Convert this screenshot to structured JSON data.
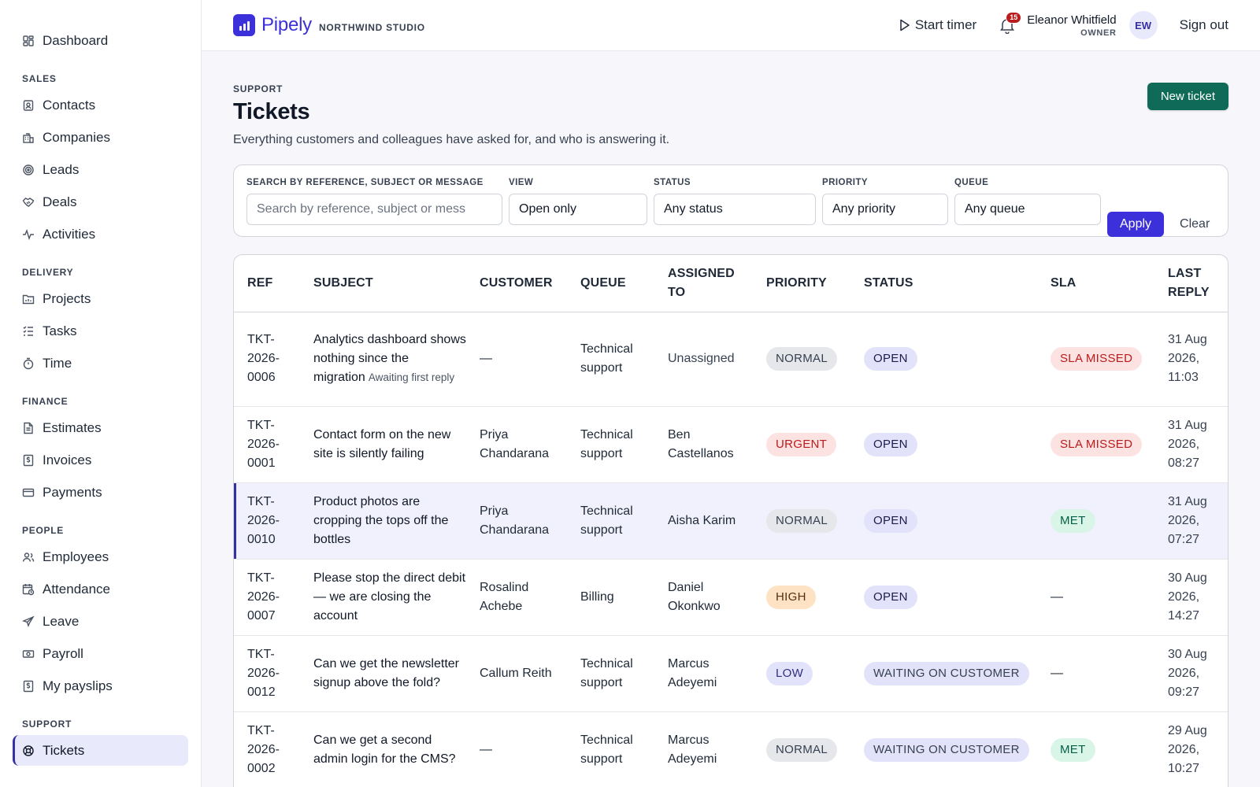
{
  "sidebar": {
    "top": [
      {
        "label": "Dashboard",
        "icon": "dashboard-icon"
      }
    ],
    "sections": [
      {
        "title": "SALES",
        "items": [
          {
            "label": "Contacts",
            "icon": "contacts-icon"
          },
          {
            "label": "Companies",
            "icon": "companies-icon"
          },
          {
            "label": "Leads",
            "icon": "target-icon"
          },
          {
            "label": "Deals",
            "icon": "handshake-icon"
          },
          {
            "label": "Activities",
            "icon": "activity-icon"
          }
        ]
      },
      {
        "title": "DELIVERY",
        "items": [
          {
            "label": "Projects",
            "icon": "folder-icon"
          },
          {
            "label": "Tasks",
            "icon": "checklist-icon"
          },
          {
            "label": "Time",
            "icon": "stopwatch-icon"
          }
        ]
      },
      {
        "title": "FINANCE",
        "items": [
          {
            "label": "Estimates",
            "icon": "document-icon"
          },
          {
            "label": "Invoices",
            "icon": "invoice-icon"
          },
          {
            "label": "Payments",
            "icon": "card-icon"
          }
        ]
      },
      {
        "title": "PEOPLE",
        "items": [
          {
            "label": "Employees",
            "icon": "people-icon"
          },
          {
            "label": "Attendance",
            "icon": "calendar-clock-icon"
          },
          {
            "label": "Leave",
            "icon": "plane-icon"
          },
          {
            "label": "Payroll",
            "icon": "money-icon"
          },
          {
            "label": "My payslips",
            "icon": "payslip-icon"
          }
        ]
      },
      {
        "title": "SUPPORT",
        "items": [
          {
            "label": "Tickets",
            "icon": "lifebuoy-icon",
            "active": true
          }
        ]
      }
    ]
  },
  "topbar": {
    "brand": "Pipely",
    "org": "NORTHWIND STUDIO",
    "start_timer": "Start timer",
    "notifications_count": "15",
    "user_name": "Eleanor Whitfield",
    "user_role": "OWNER",
    "avatar_initials": "EW",
    "sign_out": "Sign out"
  },
  "page": {
    "eyebrow": "SUPPORT",
    "title": "Tickets",
    "subtitle": "Everything customers and colleagues have asked for, and who is answering it.",
    "new_ticket": "New ticket"
  },
  "filters": {
    "search_label": "SEARCH BY REFERENCE, SUBJECT OR MESSAGE",
    "search_placeholder": "Search by reference, subject or mess",
    "view_label": "VIEW",
    "view_value": "Open only",
    "status_label": "STATUS",
    "status_value": "Any status",
    "priority_label": "PRIORITY",
    "priority_value": "Any priority",
    "queue_label": "QUEUE",
    "queue_value": "Any queue",
    "apply": "Apply",
    "clear": "Clear"
  },
  "table": {
    "headers": [
      "REF",
      "SUBJECT",
      "CUSTOMER",
      "QUEUE",
      "ASSIGNED TO",
      "PRIORITY",
      "STATUS",
      "SLA",
      "LAST REPLY"
    ],
    "rows": [
      {
        "ref": "TKT-2026-0006",
        "subject": "Analytics dashboard shows nothing since the migration",
        "note": "Awaiting first reply",
        "customer": "—",
        "queue": "Technical support",
        "assigned": "Unassigned",
        "priority": "NORMAL",
        "status": "OPEN",
        "sla": "SLA MISSED",
        "last_reply": "31 Aug 2026, 11:03"
      },
      {
        "ref": "TKT-2026-0001",
        "subject": "Contact form on the new site is silently failing",
        "note": "",
        "customer": "Priya Chandarana",
        "queue": "Technical support",
        "assigned": "Ben Castellanos",
        "priority": "URGENT",
        "status": "OPEN",
        "sla": "SLA MISSED",
        "last_reply": "31 Aug 2026, 08:27"
      },
      {
        "ref": "TKT-2026-0010",
        "subject": "Product photos are cropping the tops off the bottles",
        "note": "",
        "customer": "Priya Chandarana",
        "queue": "Technical support",
        "assigned": "Aisha Karim",
        "priority": "NORMAL",
        "status": "OPEN",
        "sla": "MET",
        "last_reply": "31 Aug 2026, 07:27",
        "selected": true
      },
      {
        "ref": "TKT-2026-0007",
        "subject": "Please stop the direct debit — we are closing the account",
        "note": "",
        "customer": "Rosalind Achebe",
        "queue": "Billing",
        "assigned": "Daniel Okonkwo",
        "priority": "HIGH",
        "status": "OPEN",
        "sla": "—",
        "last_reply": "30 Aug 2026, 14:27"
      },
      {
        "ref": "TKT-2026-0012",
        "subject": "Can we get the newsletter signup above the fold?",
        "note": "",
        "customer": "Callum Reith",
        "queue": "Technical support",
        "assigned": "Marcus Adeyemi",
        "priority": "LOW",
        "status": "WAITING ON CUSTOMER",
        "sla": "—",
        "last_reply": "30 Aug 2026, 09:27"
      },
      {
        "ref": "TKT-2026-0002",
        "subject": "Can we get a second admin login for the CMS?",
        "note": "",
        "customer": "—",
        "queue": "Technical support",
        "assigned": "Marcus Adeyemi",
        "priority": "NORMAL",
        "status": "WAITING ON CUSTOMER",
        "sla": "MET",
        "last_reply": "29 Aug 2026, 10:27"
      }
    ]
  },
  "colors": {
    "accent": "#3b30d9",
    "primary_action": "#0f6b57",
    "danger": "#b91c1c",
    "success": "#065f46"
  }
}
